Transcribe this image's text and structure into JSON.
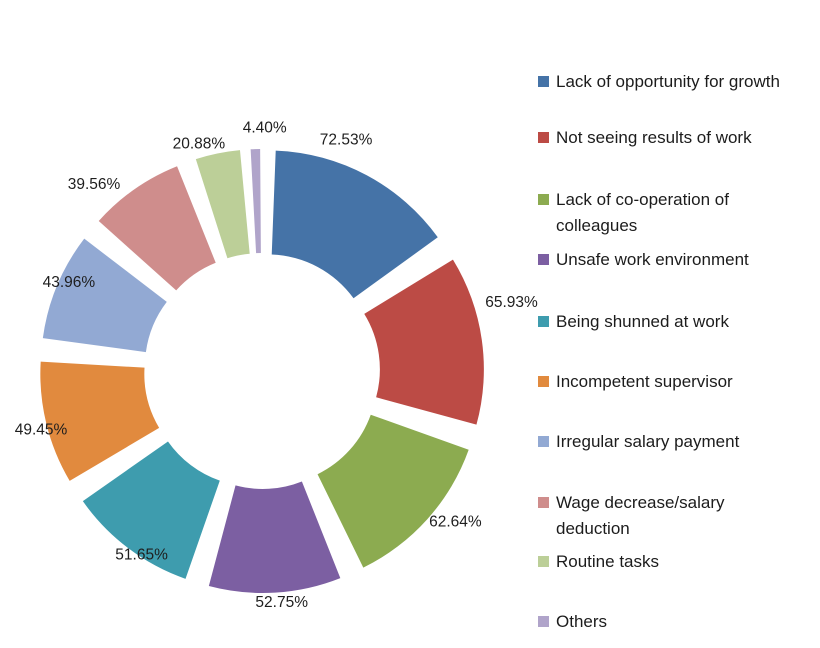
{
  "chart_data": {
    "type": "pie",
    "variant": "exploded-doughnut",
    "title": "",
    "legend_position": "right",
    "value_unit": "percent",
    "background_color": "#ffffff",
    "label_text_color": "#1e1e1e",
    "slices": [
      {
        "name": "Lack of opportunity for growth",
        "lines": [
          "Lack of opportunity for growth"
        ],
        "value": 72.53,
        "label": "72.53%",
        "color": "#4573A7"
      },
      {
        "name": "Not seeing results of work",
        "lines": [
          "Not seeing results of work"
        ],
        "value": 65.93,
        "label": "65.93%",
        "color": "#BC4B45"
      },
      {
        "name": "Lack of co-operation of colleagues",
        "lines": [
          "Lack of co-operation of",
          "colleagues"
        ],
        "value": 62.64,
        "label": "62.64%",
        "color": "#8CAB50"
      },
      {
        "name": "Unsafe work environment",
        "lines": [
          "Unsafe work environment"
        ],
        "value": 52.75,
        "label": "52.75%",
        "color": "#7C5FA2"
      },
      {
        "name": "Being shunned at work",
        "lines": [
          "Being shunned at work"
        ],
        "value": 51.65,
        "label": "51.65%",
        "color": "#3E9CAE"
      },
      {
        "name": "Incompetent supervisor",
        "lines": [
          "Incompetent supervisor"
        ],
        "value": 49.45,
        "label": "49.45%",
        "color": "#E18A3E"
      },
      {
        "name": "Irregular salary payment",
        "lines": [
          "Irregular salary payment"
        ],
        "value": 43.96,
        "label": "43.96%",
        "color": "#92A9D3"
      },
      {
        "name": "Wage decrease/salary deduction",
        "lines": [
          "Wage decrease/salary",
          "deduction"
        ],
        "value": 39.56,
        "label": "39.56%",
        "color": "#CF8D8C"
      },
      {
        "name": "Routine tasks",
        "lines": [
          "Routine tasks"
        ],
        "value": 20.88,
        "label": "20.88%",
        "color": "#BCCF98"
      },
      {
        "name": "Others",
        "lines": [
          "Others"
        ],
        "value": 4.4,
        "label": "4.40%",
        "color": "#B0A4CA"
      }
    ]
  }
}
